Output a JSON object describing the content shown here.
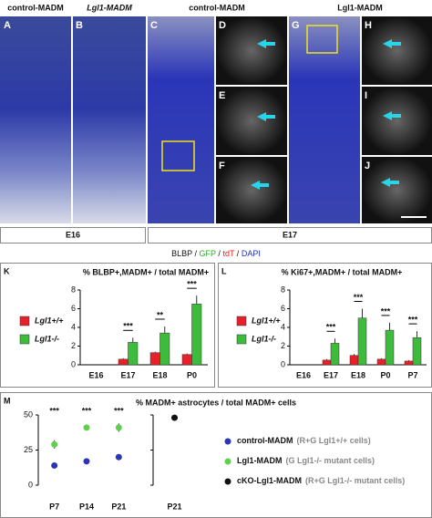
{
  "figure": {
    "headers": [
      "control-MADM",
      "Lgl1-MADM",
      "control-MADM",
      "Lgl1-MADM"
    ],
    "panel_letters": [
      "A",
      "B",
      "C",
      "D",
      "E",
      "F",
      "G",
      "H",
      "I",
      "J",
      "K",
      "L",
      "M"
    ],
    "stages": [
      "E16",
      "E17"
    ],
    "stain_legend": [
      "BLBP",
      "/",
      "GFP",
      "/",
      "tdT",
      "/",
      "DAPI"
    ]
  },
  "chart_data": [
    {
      "type": "bar",
      "title": "% BLBP+,MADM+ / total MADM+",
      "categories": [
        "E16",
        "E17",
        "E18",
        "P0"
      ],
      "series": [
        {
          "name": "Lgl1+/+",
          "color": "#e8202a",
          "values": [
            0,
            0.6,
            1.3,
            1.1
          ],
          "errors": [
            0,
            0.1,
            0.1,
            0.1
          ]
        },
        {
          "name": "Lgl1-/-",
          "color": "#3dbb3a",
          "values": [
            0,
            2.4,
            3.4,
            6.5
          ],
          "errors": [
            0,
            0.5,
            0.7,
            0.9
          ]
        }
      ],
      "significance": [
        null,
        "***",
        "**",
        "***"
      ],
      "ylim": [
        0,
        8
      ],
      "yticks": [
        0,
        2,
        4,
        6,
        8
      ]
    },
    {
      "type": "bar",
      "title": "% Ki67+,MADM+ / total MADM+",
      "categories": [
        "E16",
        "E17",
        "E18",
        "P0",
        "P7"
      ],
      "series": [
        {
          "name": "Lgl1+/+",
          "color": "#e8202a",
          "values": [
            0,
            0.5,
            1.0,
            0.6,
            0.4
          ],
          "errors": [
            0,
            0.1,
            0.15,
            0.1,
            0.1
          ]
        },
        {
          "name": "Lgl1-/-",
          "color": "#3dbb3a",
          "values": [
            0,
            2.3,
            5.0,
            3.7,
            2.9
          ],
          "errors": [
            0,
            0.5,
            1.0,
            0.8,
            0.7
          ]
        }
      ],
      "significance": [
        null,
        "***",
        "***",
        "***",
        "***"
      ],
      "ylim": [
        0,
        8
      ],
      "yticks": [
        0,
        2,
        4,
        6,
        8
      ]
    },
    {
      "type": "scatter",
      "title": "% MADM+ astrocytes / total MADM+ cells",
      "categories": [
        "P7",
        "P14",
        "P21",
        "P21"
      ],
      "series": [
        {
          "name": "control-MADM",
          "note": "(R+G Lgl1+/+ cells)",
          "color": "#2b35b8",
          "values": [
            14,
            17,
            20,
            null
          ],
          "errors": [
            1,
            1,
            2,
            null
          ]
        },
        {
          "name": "Lgl1-MADM",
          "note": "(G Lgl1-/- mutant cells)",
          "color": "#5fd04a",
          "values": [
            29,
            41,
            41,
            null
          ],
          "errors": [
            3,
            2,
            3,
            null
          ]
        },
        {
          "name": "cKO-Lgl1-MADM",
          "note": "(R+G Lgl1-/- mutant cells)",
          "color": "#111111",
          "values": [
            null,
            null,
            null,
            48
          ],
          "errors": [
            null,
            null,
            null,
            2
          ]
        }
      ],
      "significance": [
        "***",
        "***",
        "***",
        null
      ],
      "ylim": [
        0,
        50
      ],
      "yticks": [
        0,
        25,
        50
      ]
    }
  ]
}
